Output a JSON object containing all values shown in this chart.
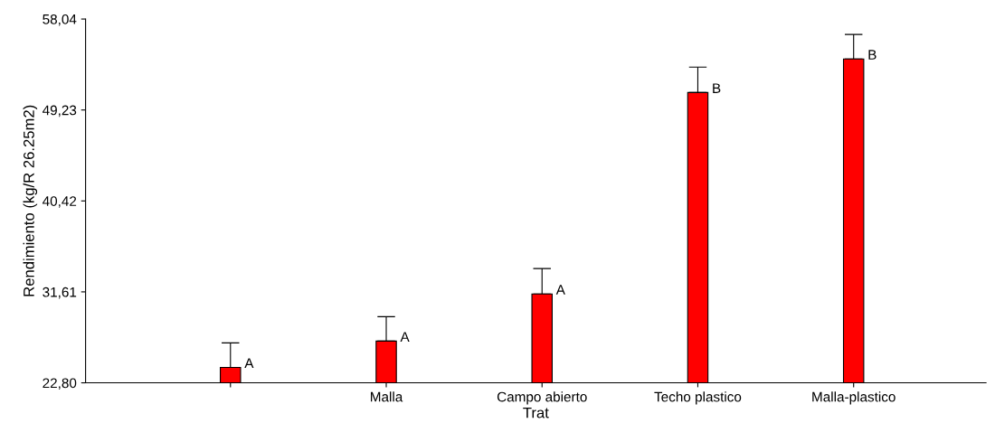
{
  "chart_data": {
    "type": "bar",
    "xlabel": "Trat",
    "ylabel": "Rendimiento (kg/R 26.25m2)",
    "categories": [
      null,
      "Malla",
      "Campo abierto",
      "Techo plastico",
      "Malla-plastico"
    ],
    "series": [
      {
        "color": "#ff0000",
        "values": [
          24.29,
          26.84,
          31.41,
          50.92,
          54.17
        ],
        "errors": [
          [
            24.29,
            26.67
          ],
          [
            26.84,
            29.21
          ],
          [
            31.41,
            33.87
          ],
          [
            50.92,
            53.38
          ],
          [
            54.17,
            56.55
          ]
        ],
        "value_labels": [
          "A",
          "A",
          "A",
          "B",
          "B"
        ]
      }
    ],
    "ylim": [
      22.8,
      58.04
    ],
    "yticks": [
      {
        "value": 22.8,
        "label": "22,80"
      },
      {
        "value": 31.61,
        "label": "31,61"
      },
      {
        "value": 40.42,
        "label": "40,42"
      },
      {
        "value": 49.23,
        "label": "49,23"
      },
      {
        "value": 58.04,
        "label": "58,04"
      }
    ],
    "grid": false,
    "legend": false
  }
}
